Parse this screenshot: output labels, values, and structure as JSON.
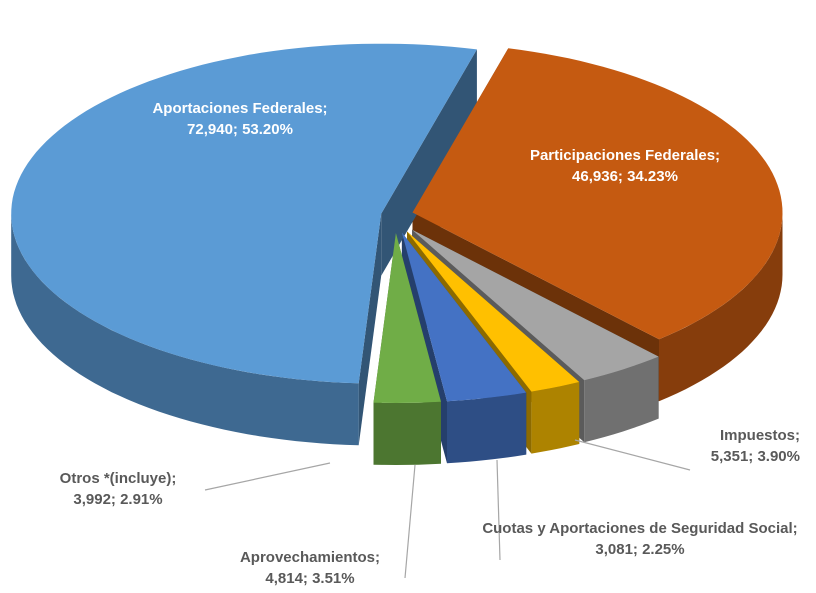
{
  "chart_data": {
    "type": "pie",
    "categories": [
      "Participaciones Federales",
      "Impuestos",
      "Cuotas y Aportaciones de Seguridad Social",
      "Aprovechamientos",
      "Otros *(incluye)",
      "Aportaciones Federales"
    ],
    "values": [
      46936,
      5351,
      3081,
      4814,
      3992,
      72940
    ],
    "value_labels": [
      "46,936",
      "5,351",
      "3,081",
      "4,814",
      "3,992",
      "72,940"
    ],
    "percentages": [
      34.23,
      3.9,
      2.25,
      3.51,
      2.91,
      53.2
    ],
    "percentage_labels": [
      "34.23%",
      "3.90%",
      "2.25%",
      "3.51%",
      "2.91%",
      "53.20%"
    ],
    "colors": [
      "#c55a11",
      "#a5a5a5",
      "#ffc000",
      "#4472c4",
      "#70ad47",
      "#5b9bd5"
    ]
  }
}
